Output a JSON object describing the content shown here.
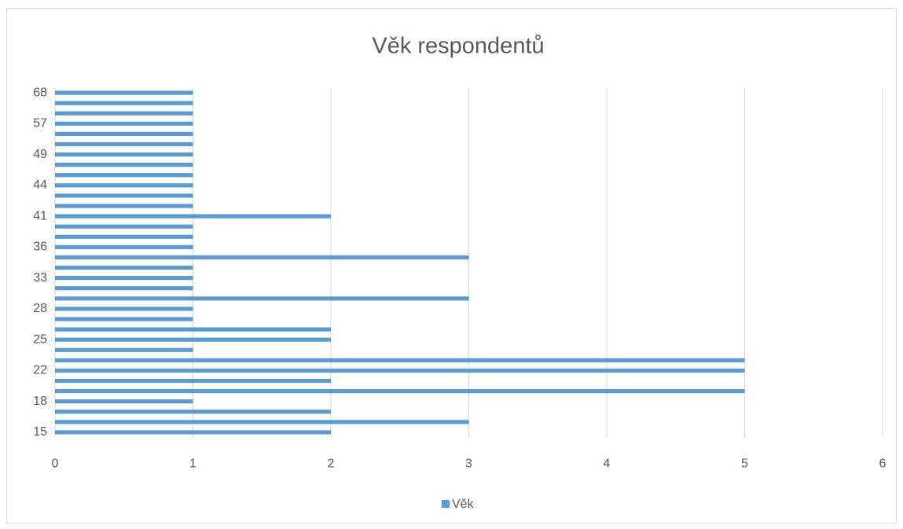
{
  "chart_data": {
    "type": "bar",
    "orientation": "horizontal",
    "title": "Věk respondentů",
    "categories": [
      "15",
      null,
      null,
      "18",
      null,
      null,
      "22",
      null,
      null,
      "25",
      null,
      null,
      "28",
      null,
      null,
      "33",
      null,
      null,
      "36",
      null,
      null,
      "41",
      null,
      null,
      "44",
      null,
      null,
      "49",
      null,
      null,
      "57",
      null,
      null,
      "68"
    ],
    "series": [
      {
        "name": "Věk",
        "color": "#5b9bd5",
        "values": [
          2,
          3,
          2,
          1,
          5,
          2,
          5,
          5,
          1,
          2,
          2,
          1,
          1,
          3,
          1,
          1,
          1,
          3,
          1,
          1,
          1,
          2,
          1,
          1,
          1,
          1,
          1,
          1,
          1,
          1,
          1,
          1,
          1,
          1
        ]
      }
    ],
    "xlim": [
      0,
      6
    ],
    "xticks": [
      0,
      1,
      2,
      3,
      4,
      5,
      6
    ],
    "grid": true,
    "legend": "bottom"
  }
}
